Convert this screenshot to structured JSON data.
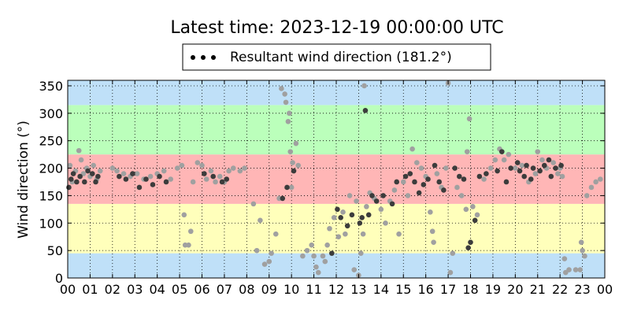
{
  "chart_data": {
    "type": "scatter",
    "title": "Latest time: 2023-12-19 00:00:00 UTC",
    "xlabel": "",
    "ylabel": "Wind direction (°)",
    "xlim": [
      0,
      24
    ],
    "ylim": [
      0,
      360
    ],
    "x_tick_labels": [
      "00",
      "01",
      "02",
      "03",
      "04",
      "05",
      "06",
      "07",
      "08",
      "09",
      "10",
      "11",
      "12",
      "13",
      "14",
      "15",
      "16",
      "17",
      "18",
      "19",
      "20",
      "21",
      "22",
      "23",
      "00"
    ],
    "y_ticks": [
      0,
      50,
      100,
      150,
      200,
      250,
      300,
      350
    ],
    "grid": true,
    "legend": {
      "label": "Resultant wind direction (181.2°)",
      "placement": "top-center"
    },
    "bands": [
      {
        "from": 0,
        "to": 45,
        "color": "#bfe0f8"
      },
      {
        "from": 45,
        "to": 135,
        "color": "#ffffbb"
      },
      {
        "from": 135,
        "to": 225,
        "color": "#ffb6b6"
      },
      {
        "from": 225,
        "to": 315,
        "color": "#bbffbb"
      },
      {
        "from": 315,
        "to": 360,
        "color": "#bfe0f8"
      }
    ],
    "colors": {
      "light_points": "#a0a0a0",
      "dark_points": "#3c3c3c"
    },
    "series": [
      {
        "color": "#a0a0a0",
        "points": [
          [
            0.1,
            205
          ],
          [
            0.2,
            175
          ],
          [
            0.35,
            195
          ],
          [
            0.5,
            232
          ],
          [
            0.6,
            215
          ],
          [
            0.7,
            190
          ],
          [
            0.85,
            200
          ],
          [
            1.0,
            185
          ],
          [
            1.15,
            205
          ],
          [
            1.3,
            180
          ],
          [
            1.45,
            195
          ],
          [
            2.0,
            200
          ],
          [
            2.2,
            195
          ],
          [
            2.5,
            190
          ],
          [
            2.8,
            185
          ],
          [
            3.1,
            190
          ],
          [
            3.4,
            180
          ],
          [
            3.7,
            185
          ],
          [
            4.0,
            190
          ],
          [
            4.3,
            195
          ],
          [
            4.6,
            180
          ],
          [
            4.9,
            200
          ],
          [
            5.1,
            205
          ],
          [
            5.2,
            115
          ],
          [
            5.25,
            60
          ],
          [
            5.4,
            60
          ],
          [
            5.5,
            85
          ],
          [
            5.6,
            175
          ],
          [
            5.8,
            210
          ],
          [
            6.0,
            205
          ],
          [
            6.2,
            180
          ],
          [
            6.4,
            195
          ],
          [
            6.6,
            175
          ],
          [
            6.8,
            185
          ],
          [
            7.0,
            175
          ],
          [
            7.2,
            195
          ],
          [
            7.4,
            200
          ],
          [
            7.7,
            195
          ],
          [
            7.9,
            200
          ],
          [
            8.3,
            135
          ],
          [
            8.45,
            50
          ],
          [
            8.6,
            105
          ],
          [
            8.8,
            25
          ],
          [
            9.0,
            30
          ],
          [
            9.1,
            45
          ],
          [
            9.3,
            80
          ],
          [
            9.45,
            145
          ],
          [
            9.55,
            345
          ],
          [
            9.7,
            335
          ],
          [
            9.75,
            320
          ],
          [
            9.85,
            285
          ],
          [
            9.9,
            300
          ],
          [
            9.95,
            230
          ],
          [
            10.0,
            165
          ],
          [
            10.05,
            210
          ],
          [
            10.2,
            245
          ],
          [
            10.3,
            205
          ],
          [
            10.5,
            40
          ],
          [
            10.7,
            50
          ],
          [
            10.9,
            60
          ],
          [
            11.0,
            40
          ],
          [
            11.1,
            20
          ],
          [
            11.2,
            10
          ],
          [
            11.4,
            40
          ],
          [
            11.5,
            30
          ],
          [
            11.6,
            60
          ],
          [
            11.7,
            90
          ],
          [
            11.9,
            110
          ],
          [
            12.1,
            75
          ],
          [
            12.3,
            120
          ],
          [
            12.4,
            80
          ],
          [
            12.6,
            150
          ],
          [
            12.8,
            15
          ],
          [
            12.9,
            140
          ],
          [
            13.0,
            5
          ],
          [
            13.1,
            45
          ],
          [
            13.2,
            80
          ],
          [
            13.25,
            350
          ],
          [
            13.35,
            130
          ],
          [
            13.5,
            155
          ],
          [
            13.7,
            145
          ],
          [
            14.0,
            125
          ],
          [
            14.2,
            100
          ],
          [
            14.4,
            140
          ],
          [
            14.6,
            160
          ],
          [
            14.8,
            80
          ],
          [
            15.0,
            175
          ],
          [
            15.2,
            150
          ],
          [
            15.4,
            235
          ],
          [
            15.6,
            210
          ],
          [
            15.8,
            200
          ],
          [
            16.0,
            185
          ],
          [
            16.2,
            120
          ],
          [
            16.3,
            85
          ],
          [
            16.35,
            65
          ],
          [
            16.5,
            190
          ],
          [
            16.7,
            165
          ],
          [
            16.9,
            200
          ],
          [
            17.0,
            355
          ],
          [
            17.1,
            10
          ],
          [
            17.2,
            45
          ],
          [
            17.4,
            165
          ],
          [
            17.6,
            150
          ],
          [
            17.8,
            125
          ],
          [
            17.85,
            230
          ],
          [
            17.95,
            290
          ],
          [
            18.1,
            130
          ],
          [
            18.3,
            115
          ],
          [
            18.6,
            180
          ],
          [
            18.9,
            200
          ],
          [
            19.1,
            215
          ],
          [
            19.3,
            235
          ],
          [
            19.5,
            215
          ],
          [
            19.7,
            225
          ],
          [
            20.0,
            200
          ],
          [
            20.3,
            205
          ],
          [
            20.6,
            175
          ],
          [
            20.9,
            190
          ],
          [
            21.0,
            230
          ],
          [
            21.2,
            215
          ],
          [
            21.4,
            200
          ],
          [
            21.7,
            210
          ],
          [
            21.9,
            190
          ],
          [
            22.0,
            200
          ],
          [
            22.1,
            185
          ],
          [
            22.2,
            35
          ],
          [
            22.25,
            10
          ],
          [
            22.4,
            15
          ],
          [
            22.7,
            15
          ],
          [
            22.9,
            15
          ],
          [
            22.95,
            65
          ],
          [
            23.0,
            50
          ],
          [
            23.1,
            40
          ],
          [
            23.2,
            150
          ],
          [
            23.4,
            165
          ],
          [
            23.6,
            175
          ],
          [
            23.8,
            180
          ]
        ]
      },
      {
        "color": "#3c3c3c",
        "points": [
          [
            0.05,
            165
          ],
          [
            0.15,
            180
          ],
          [
            0.25,
            190
          ],
          [
            0.4,
            175
          ],
          [
            0.55,
            185
          ],
          [
            0.75,
            175
          ],
          [
            0.9,
            195
          ],
          [
            1.1,
            190
          ],
          [
            1.25,
            175
          ],
          [
            1.35,
            185
          ],
          [
            2.3,
            185
          ],
          [
            2.6,
            180
          ],
          [
            2.9,
            190
          ],
          [
            3.2,
            165
          ],
          [
            3.5,
            180
          ],
          [
            3.8,
            170
          ],
          [
            4.1,
            185
          ],
          [
            4.4,
            175
          ],
          [
            6.1,
            190
          ],
          [
            6.5,
            185
          ],
          [
            6.9,
            175
          ],
          [
            7.1,
            180
          ],
          [
            9.6,
            145
          ],
          [
            9.8,
            165
          ],
          [
            10.1,
            195
          ],
          [
            11.8,
            45
          ],
          [
            12.05,
            125
          ],
          [
            12.2,
            110
          ],
          [
            12.5,
            95
          ],
          [
            12.7,
            115
          ],
          [
            13.05,
            100
          ],
          [
            13.15,
            110
          ],
          [
            13.3,
            305
          ],
          [
            13.45,
            115
          ],
          [
            13.6,
            150
          ],
          [
            13.8,
            140
          ],
          [
            14.1,
            150
          ],
          [
            14.5,
            135
          ],
          [
            14.7,
            175
          ],
          [
            15.1,
            185
          ],
          [
            15.3,
            190
          ],
          [
            15.5,
            175
          ],
          [
            15.7,
            155
          ],
          [
            15.9,
            170
          ],
          [
            16.1,
            180
          ],
          [
            16.4,
            205
          ],
          [
            16.6,
            175
          ],
          [
            16.8,
            160
          ],
          [
            17.3,
            200
          ],
          [
            17.5,
            185
          ],
          [
            17.7,
            180
          ],
          [
            17.9,
            55
          ],
          [
            18.0,
            65
          ],
          [
            18.2,
            105
          ],
          [
            18.4,
            185
          ],
          [
            18.7,
            190
          ],
          [
            19.2,
            195
          ],
          [
            19.4,
            230
          ],
          [
            19.6,
            175
          ],
          [
            19.8,
            200
          ],
          [
            20.1,
            210
          ],
          [
            20.2,
            195
          ],
          [
            20.4,
            185
          ],
          [
            20.5,
            205
          ],
          [
            20.7,
            180
          ],
          [
            20.8,
            200
          ],
          [
            21.1,
            195
          ],
          [
            21.3,
            205
          ],
          [
            21.5,
            215
          ],
          [
            21.6,
            185
          ],
          [
            21.8,
            200
          ],
          [
            22.05,
            205
          ]
        ]
      }
    ]
  }
}
